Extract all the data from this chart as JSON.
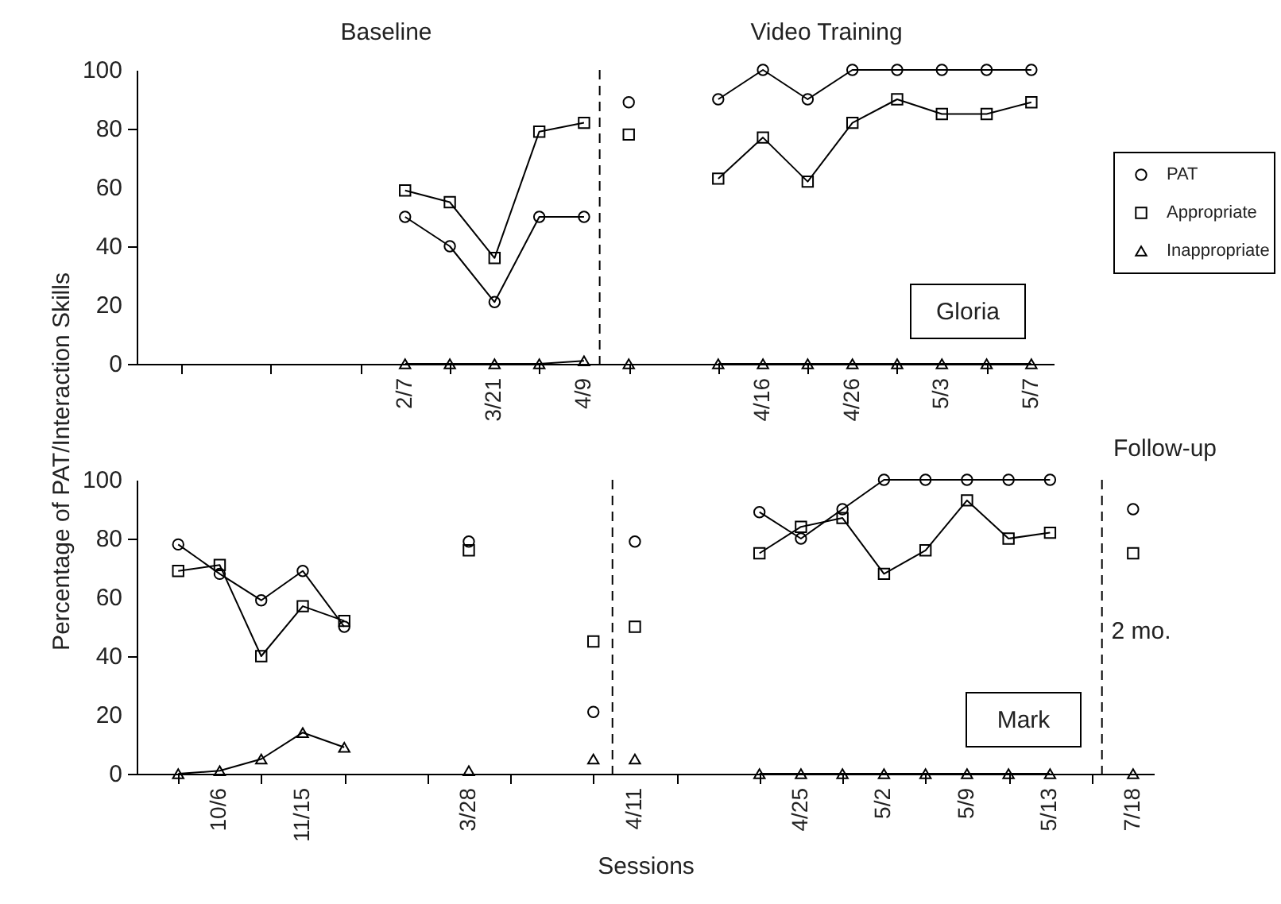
{
  "chart_data": [
    {
      "type": "line",
      "annotations": [
        "Baseline",
        "Video Training",
        "Gloria"
      ],
      "ylim": [
        0,
        100
      ],
      "yticks": [
        0,
        20,
        40,
        60,
        80,
        100
      ],
      "categories": [
        null,
        null,
        null,
        null,
        null,
        "2/7",
        null,
        "3/21",
        null,
        "4/9",
        null,
        null,
        null,
        "4/16",
        null,
        "4/26",
        null,
        "5/3",
        null,
        "5/7"
      ],
      "series": [
        {
          "name": "PAT",
          "color": "#000000",
          "marker": "circle",
          "values": [
            null,
            null,
            null,
            null,
            null,
            50,
            40,
            21,
            50,
            50,
            null,
            null,
            90,
            100,
            90,
            100,
            100,
            100,
            100,
            100
          ]
        },
        {
          "name": "Appropriate",
          "color": "#000000",
          "marker": "square",
          "values": [
            null,
            null,
            null,
            null,
            null,
            59,
            55,
            36,
            79,
            82,
            null,
            null,
            63,
            77,
            62,
            82,
            90,
            85,
            85,
            89
          ]
        },
        {
          "name": "Inappropriate",
          "color": "#000000",
          "marker": "triangle",
          "values": [
            null,
            null,
            null,
            null,
            null,
            0,
            0,
            0,
            0,
            1,
            null,
            null,
            0,
            0,
            0,
            0,
            0,
            0,
            0,
            0
          ]
        },
        {
          "type": "scatter",
          "color": "#000000",
          "marker": "circle",
          "values": [
            null,
            null,
            null,
            null,
            null,
            null,
            null,
            null,
            null,
            null,
            89,
            null,
            null,
            null,
            null,
            null,
            null,
            null,
            null,
            null
          ]
        },
        {
          "type": "scatter",
          "color": "#000000",
          "marker": "square",
          "values": [
            null,
            null,
            null,
            null,
            null,
            null,
            null,
            null,
            null,
            null,
            78,
            null,
            null,
            null,
            null,
            null,
            null,
            null,
            null,
            null
          ]
        },
        {
          "type": "scatter",
          "color": "#000000",
          "marker": "triangle",
          "values": [
            null,
            null,
            null,
            null,
            null,
            null,
            null,
            null,
            null,
            null,
            0,
            null,
            null,
            null,
            null,
            null,
            null,
            null,
            null,
            null
          ]
        }
      ],
      "grid": false,
      "legend": "right",
      "line_style": "solid"
    },
    {
      "type": "line",
      "ylabel": "Percentage of PAT/Interaction Skills",
      "xlabel": "Sessions",
      "annotations": [
        "Follow-up",
        "Mark",
        "2 mo."
      ],
      "ylim": [
        0,
        100
      ],
      "yticks": [
        0,
        20,
        40,
        60,
        80,
        100
      ],
      "categories": [
        null,
        "10/6",
        null,
        "11/15",
        null,
        null,
        null,
        "3/28",
        null,
        null,
        null,
        "4/11",
        null,
        null,
        null,
        "4/25",
        null,
        "5/2",
        null,
        "5/9",
        null,
        "5/13",
        null,
        "7/18"
      ],
      "series": [
        {
          "color": "#000000",
          "marker": "circle",
          "values": [
            78,
            68,
            59,
            69,
            50,
            null,
            null,
            null,
            null,
            null,
            null,
            null,
            null,
            null,
            89,
            80,
            90,
            100,
            100,
            100,
            100,
            100,
            null,
            null
          ]
        },
        {
          "color": "#000000",
          "marker": "square",
          "values": [
            69,
            71,
            40,
            57,
            52,
            null,
            null,
            null,
            null,
            null,
            null,
            null,
            null,
            null,
            75,
            84,
            87,
            68,
            76,
            93,
            80,
            82,
            null,
            null
          ]
        },
        {
          "color": "#000000",
          "marker": "triangle",
          "values": [
            0,
            1,
            5,
            14,
            9,
            null,
            null,
            null,
            null,
            null,
            null,
            null,
            null,
            null,
            0,
            0,
            0,
            0,
            0,
            0,
            0,
            0,
            null,
            null
          ]
        },
        {
          "type": "scatter",
          "color": "#000000",
          "marker": "circle",
          "values": [
            null,
            null,
            null,
            null,
            null,
            null,
            null,
            79,
            null,
            null,
            21,
            79,
            null,
            null,
            null,
            null,
            null,
            null,
            null,
            null,
            null,
            null,
            null,
            90
          ]
        },
        {
          "type": "scatter",
          "color": "#000000",
          "marker": "square",
          "values": [
            null,
            null,
            null,
            null,
            null,
            null,
            null,
            76,
            null,
            null,
            45,
            50,
            null,
            null,
            null,
            null,
            null,
            null,
            null,
            null,
            null,
            null,
            null,
            75
          ]
        },
        {
          "type": "scatter",
          "color": "#000000",
          "marker": "triangle",
          "values": [
            null,
            null,
            null,
            null,
            null,
            null,
            null,
            1,
            null,
            null,
            5,
            5,
            null,
            null,
            null,
            null,
            null,
            null,
            null,
            null,
            null,
            null,
            null,
            0
          ]
        }
      ],
      "grid": false,
      "line_style": "solid"
    }
  ]
}
